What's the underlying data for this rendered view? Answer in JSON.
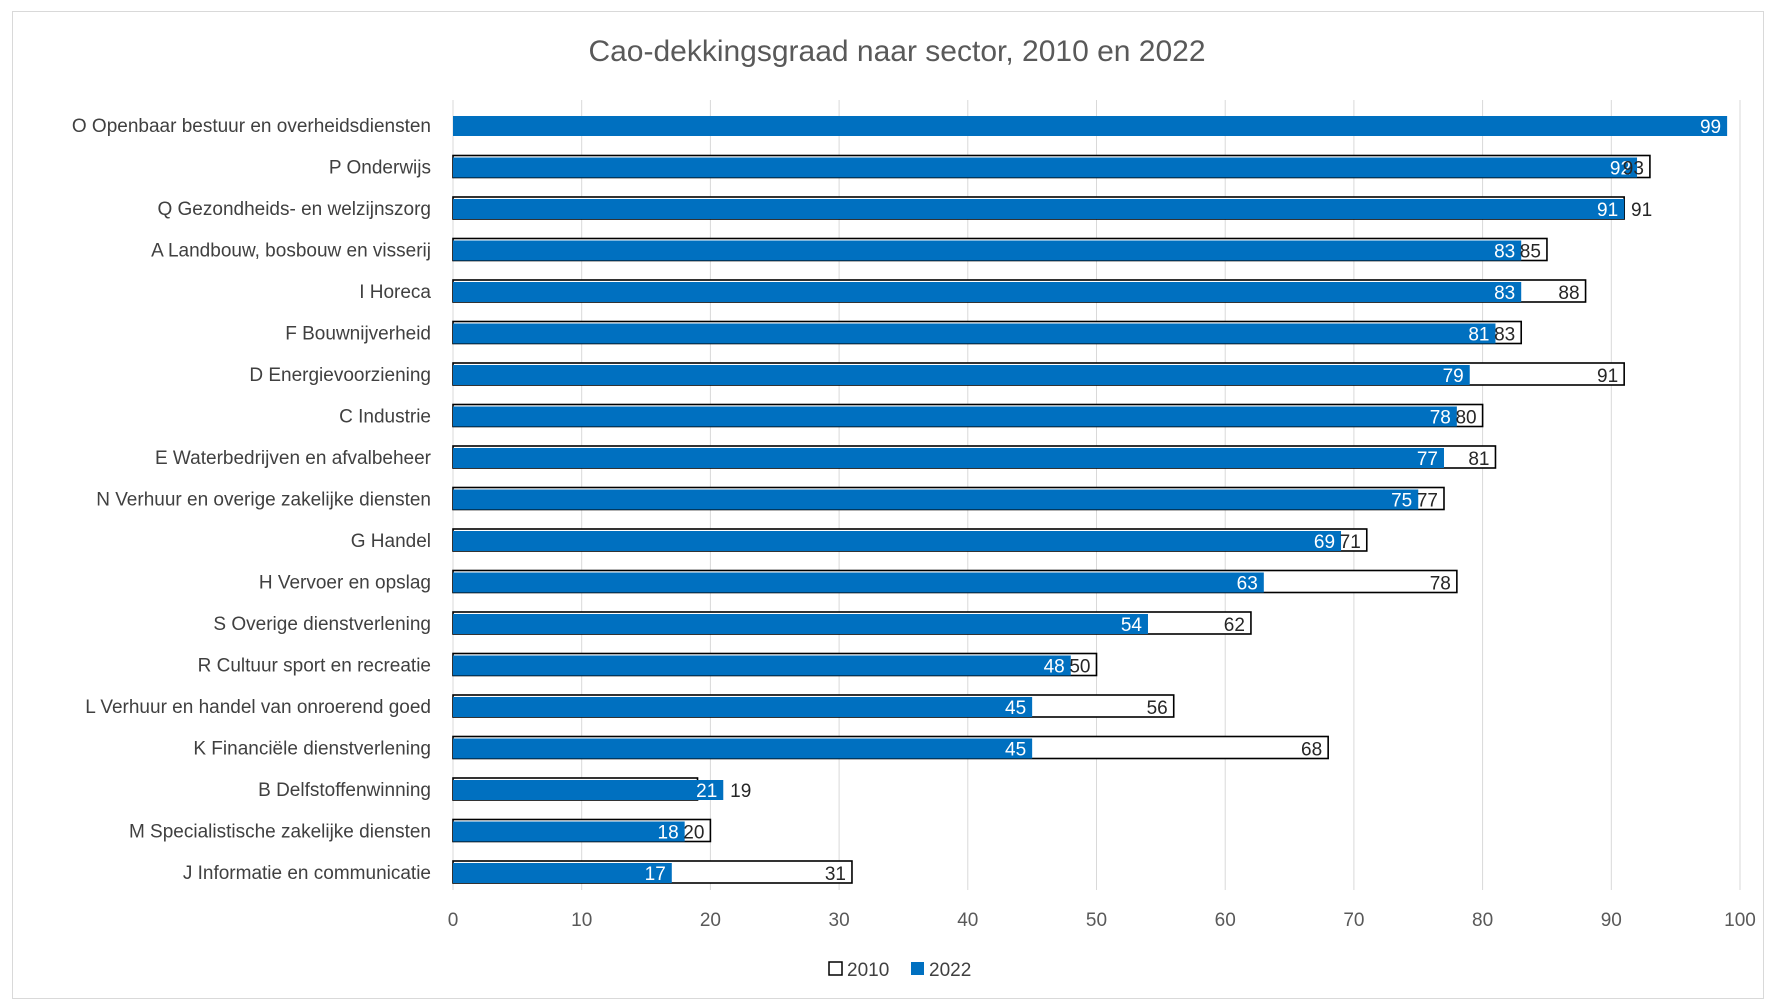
{
  "chart_data": {
    "type": "bar",
    "orientation": "horizontal",
    "title": "Cao-dekkingsgraad naar sector, 2010 en 2022",
    "xlabel": "",
    "ylabel": "",
    "xlim": [
      0,
      100
    ],
    "xticks": [
      0,
      10,
      20,
      30,
      40,
      50,
      60,
      70,
      80,
      90,
      100
    ],
    "grid": "vertical",
    "legend_position": "bottom",
    "categories": [
      "O Openbaar bestuur en overheidsdiensten",
      "P Onderwijs",
      "Q Gezondheids- en welzijnszorg",
      "A Landbouw, bosbouw en visserij",
      "I Horeca",
      "F Bouwnijverheid",
      "D Energievoorziening",
      "C Industrie",
      "E Waterbedrijven en afvalbeheer",
      "N Verhuur en overige zakelijke diensten",
      "G Handel",
      "H Vervoer en opslag",
      "S Overige dienstverlening",
      "R Cultuur sport en recreatie",
      "L Verhuur en handel van onroerend goed",
      "K Financiële dienstverlening",
      "B Delfstoffenwinning",
      "M Specialistische zakelijke diensten",
      "J Informatie en communicatie"
    ],
    "series": [
      {
        "name": "2010",
        "color": "#ffffff",
        "stroke": "#000000",
        "values": [
          null,
          93,
          91,
          85,
          88,
          83,
          91,
          80,
          81,
          77,
          71,
          78,
          62,
          50,
          56,
          68,
          19,
          20,
          31
        ],
        "labels": [
          "",
          "93",
          "91",
          "85",
          "88",
          "83",
          "91",
          "80",
          "81",
          "77",
          "71",
          "78",
          "62",
          "50",
          "56",
          "68",
          "19",
          "20",
          "31"
        ]
      },
      {
        "name": "2022",
        "color": "#0070c0",
        "values": [
          99,
          92,
          91,
          83,
          83,
          81,
          79,
          78,
          77,
          75,
          69,
          63,
          54,
          48,
          45,
          45,
          21,
          18,
          17
        ],
        "labels": [
          "99",
          "92",
          "91",
          "83",
          "83",
          "81",
          "79",
          "78",
          "77",
          "75",
          "69",
          "63",
          "54",
          "48",
          "45",
          "45",
          "21",
          "18",
          "17"
        ]
      }
    ]
  }
}
